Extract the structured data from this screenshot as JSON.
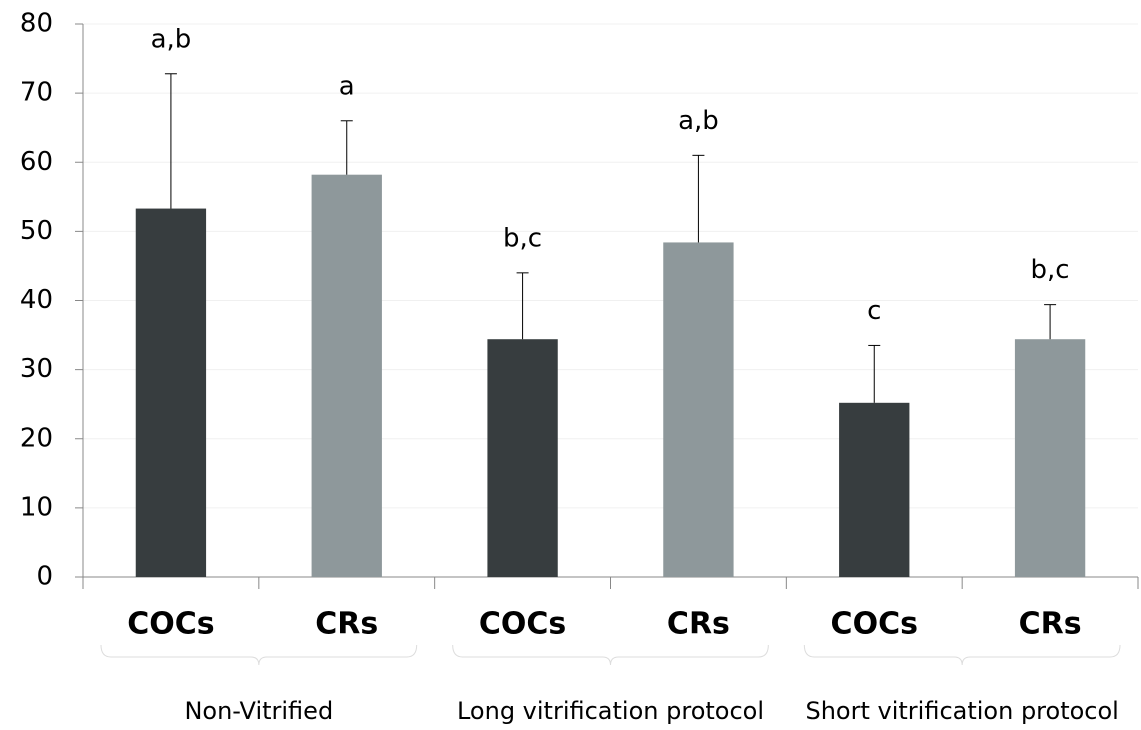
{
  "chart_data": {
    "type": "bar",
    "categories": [
      "COCs",
      "CRs",
      "COCs",
      "CRs",
      "COCs",
      "CRs"
    ],
    "values": [
      53.3,
      58.2,
      34.4,
      48.4,
      25.2,
      34.4
    ],
    "errors": [
      19.5,
      7.8,
      9.6,
      12.6,
      8.3,
      5.0
    ],
    "annotations": [
      "a,b",
      "a",
      "b,c",
      "a,b",
      "c",
      "b,c"
    ],
    "colors": [
      "#373d3f",
      "#8e989b",
      "#373d3f",
      "#8e989b",
      "#373d3f",
      "#8e989b"
    ],
    "groups": [
      "Non-Vitrified",
      "Long vitrification protocol",
      "Short vitrification protocol"
    ],
    "ylim": [
      0,
      80
    ],
    "yticks": [
      0,
      10,
      20,
      30,
      40,
      50,
      60,
      70,
      80
    ],
    "grid": true
  }
}
